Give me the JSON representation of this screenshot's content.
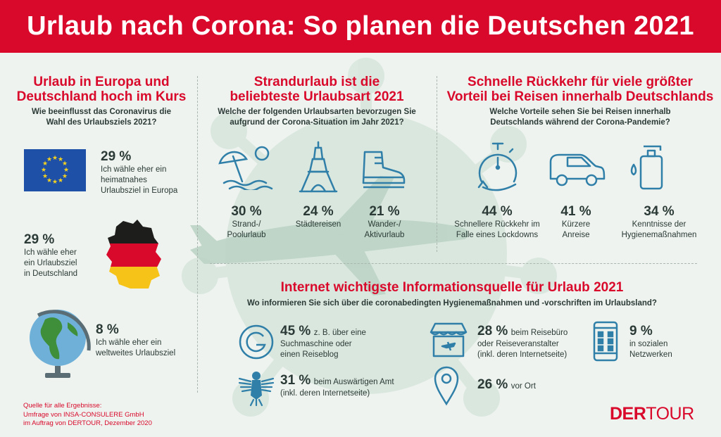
{
  "title": "Urlaub nach Corona: So planen die Deutschen 2021",
  "section1": {
    "heading_line1": "Urlaub in Europa und",
    "heading_line2": "Deutschland hoch im Kurs",
    "question_line1": "Wie beeinflusst das Coronavirus die",
    "question_line2": "Wahl des Urlaubsziels 2021?",
    "items": [
      {
        "pct": "29 %",
        "line1": "Ich wähle eher ein",
        "line2": "heimatnahes",
        "line3": "Urlaubsziel in Europa",
        "icon": "eu-flag-icon"
      },
      {
        "pct": "29 %",
        "line1": "Ich wähle eher",
        "line2": "ein Urlaubsziel",
        "line3": "in Deutschland",
        "icon": "germany-map-icon"
      },
      {
        "pct": "8 %",
        "line1": "Ich wähle eher ein",
        "line2": "weltweites Urlaubsziel",
        "icon": "globe-icon"
      }
    ]
  },
  "section2": {
    "heading_line1": "Strandurlaub ist die",
    "heading_line2": "beliebteste Urlaubsart 2021",
    "question_line1": "Welche der folgenden Urlaubsarten bevorzugen Sie",
    "question_line2": "aufgrund der Corona-Situation im Jahr 2021?",
    "items": [
      {
        "pct": "30 %",
        "line1": "Strand-/",
        "line2": "Poolurlaub",
        "icon": "beach-umbrella-icon"
      },
      {
        "pct": "24 %",
        "line1": "Städtereisen",
        "icon": "eiffel-tower-icon"
      },
      {
        "pct": "21 %",
        "line1": "Wander-/",
        "line2": "Aktivurlaub",
        "icon": "hiking-boot-icon"
      }
    ]
  },
  "section3": {
    "heading_line1": "Schnelle Rückkehr für viele größter",
    "heading_line2": "Vorteil bei Reisen innerhalb Deutschlands",
    "question_line1": "Welche Vorteile sehen Sie bei Reisen innerhalb",
    "question_line2": "Deutschlands während der Corona-Pandemie?",
    "items": [
      {
        "pct": "44 %",
        "line1": "Schnellere Rückkehr im",
        "line2": "Falle eines Lockdowns",
        "icon": "stopwatch-icon"
      },
      {
        "pct": "41 %",
        "line1": "Kürzere",
        "line2": "Anreise",
        "icon": "car-icon"
      },
      {
        "pct": "34 %",
        "line1": "Kenntnisse der",
        "line2": "Hygienemaßnahmen",
        "icon": "soap-dispenser-icon"
      }
    ]
  },
  "section4": {
    "heading": "Internet wichtigste Informationsquelle für Urlaub 2021",
    "question": "Wo informieren Sie sich über die coronabedingten Hygienemaßnahmen und -vorschriften im Urlaubsland?",
    "items": [
      {
        "pct": "45 %",
        "line1": "z. B. über eine",
        "line2": "Suchmaschine oder",
        "line3": "einen Reiseblog",
        "icon": "search-engine-g-icon"
      },
      {
        "pct": "28 %",
        "line1": "beim Reisebüro",
        "line2": "oder Reiseveranstalter",
        "line3": "(inkl. deren Internetseite)",
        "icon": "travel-agency-icon"
      },
      {
        "pct": "9 %",
        "line1": "in sozialen",
        "line2": "Netzwerken",
        "icon": "smartphone-icon"
      },
      {
        "pct": "31 %",
        "line1": "beim Auswärtigen Amt",
        "line2": "(inkl. deren Internetseite)",
        "icon": "federal-eagle-icon"
      },
      {
        "pct": "26 %",
        "line1": "vor Ort",
        "icon": "location-pin-icon"
      }
    ]
  },
  "footer": {
    "line1": "Quelle für alle Ergebnisse:",
    "line2": "Umfrage von INSA-CONSULERE GmbH",
    "line3": "im Auftrag von DERTOUR, Dezember 2020"
  },
  "logo": {
    "part1": "DER",
    "part2": "TOUR"
  },
  "colors": {
    "accent": "#d9092b",
    "icon": "#2f7fa8",
    "text": "#2b3a36",
    "background": "#eef3ef"
  }
}
